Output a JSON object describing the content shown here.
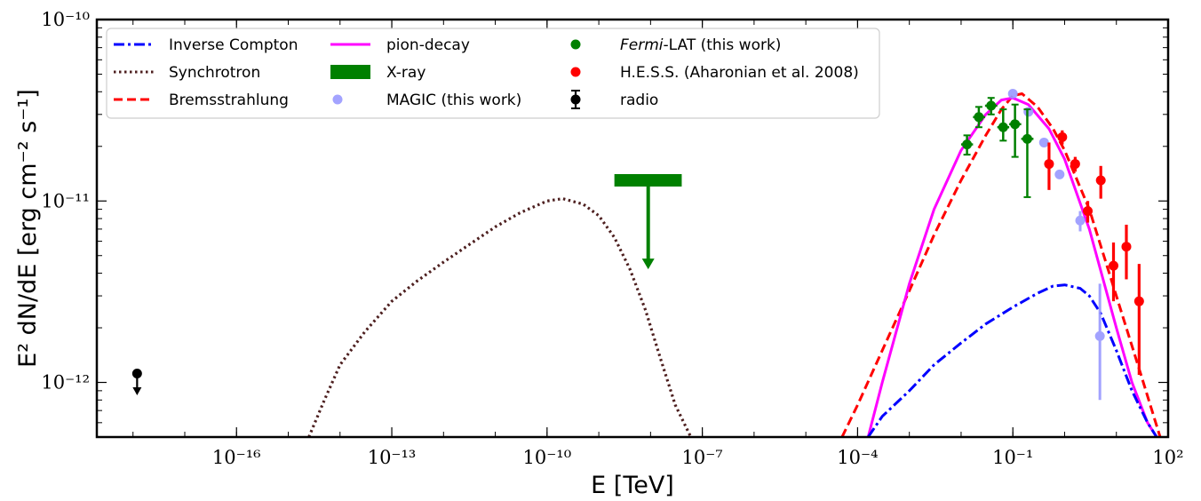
{
  "chart_data": {
    "type": "scatter",
    "xlabel": "E [TeV]",
    "ylabel": "E² dN/dE [erg cm⁻² s⁻¹]",
    "x_scale": "log",
    "y_scale": "log",
    "xlim": [
      2e-19,
      100
    ],
    "ylim": [
      5e-13,
      1e-10
    ],
    "x_ticks": [
      1e-16,
      1e-13,
      1e-10,
      1e-07,
      0.0001,
      0.1,
      100
    ],
    "x_tick_labels": [
      "10⁻¹⁶",
      "10⁻¹³",
      "10⁻¹⁰",
      "10⁻⁷",
      "10⁻⁴",
      "10⁻¹",
      "10²"
    ],
    "y_ticks": [
      1e-12,
      1e-11,
      1e-10
    ],
    "y_tick_labels": [
      "10⁻¹²",
      "10⁻¹¹",
      "10⁻¹⁰"
    ],
    "grid": false,
    "legend_placement": "top-left",
    "colors": {
      "inverse_compton": "#0000ff",
      "synchrotron": "#4d1f1f",
      "bremsstrahlung": "#ff0000",
      "pion_decay": "#ff00ff",
      "xray": "#008000",
      "magic": "#9999ff",
      "fermi": "#008000",
      "hess": "#ff0000",
      "radio": "#000000"
    },
    "legend": [
      {
        "key": "inverse_compton",
        "label": "Inverse Compton",
        "style": "dashdot"
      },
      {
        "key": "synchrotron",
        "label": "Synchrotron",
        "style": "dotted"
      },
      {
        "key": "bremsstrahlung",
        "label": "Bremsstrahlung",
        "style": "dashed"
      },
      {
        "key": "pion_decay",
        "label": "pion-decay",
        "style": "solid"
      },
      {
        "key": "xray",
        "label": "X-ray",
        "style": "patch"
      },
      {
        "key": "magic",
        "label": "MAGIC (this work)",
        "style": "marker"
      },
      {
        "key": "fermi",
        "label_italic": "Fermi",
        "label": "-LAT (this work)",
        "style": "marker"
      },
      {
        "key": "hess",
        "label": "H.E.S.S. (Aharonian et al. 2008)",
        "style": "marker"
      },
      {
        "key": "radio",
        "label": "radio",
        "style": "errorbar"
      }
    ],
    "curves": {
      "synchrotron": {
        "x": [
          2.5e-15,
          5e-15,
          1e-14,
          3e-14,
          1e-13,
          3e-13,
          1e-12,
          3e-12,
          1e-11,
          3e-11,
          1e-10,
          2e-10,
          5e-10,
          1e-09,
          2e-09,
          4e-09,
          8e-09,
          1.5e-08,
          3e-08,
          6e-08
        ],
        "y": [
          5e-13,
          8e-13,
          1.25e-12,
          1.9e-12,
          2.8e-12,
          3.6e-12,
          4.6e-12,
          5.7e-12,
          7.2e-12,
          8.6e-12,
          1e-11,
          1.03e-11,
          9.6e-12,
          8.3e-12,
          6.3e-12,
          4.2e-12,
          2.5e-12,
          1.4e-12,
          7.5e-13,
          5e-13
        ]
      },
      "pion_decay": {
        "x": [
          0.00016,
          0.0003,
          0.001,
          0.003,
          0.01,
          0.03,
          0.06,
          0.1,
          0.2,
          0.5,
          1,
          3,
          10,
          20,
          40,
          60
        ],
        "y": [
          5e-13,
          1e-12,
          3.5e-12,
          9e-12,
          1.9e-11,
          3e-11,
          3.6e-11,
          3.7e-11,
          3.4e-11,
          2.5e-11,
          1.7e-11,
          7e-12,
          2e-12,
          1e-12,
          6e-13,
          5e-13
        ]
      },
      "bremsstrahlung": {
        "x": [
          5e-05,
          0.0001,
          0.0003,
          0.001,
          0.003,
          0.01,
          0.03,
          0.06,
          0.1,
          0.15,
          0.3,
          0.6,
          1,
          3,
          10,
          30,
          70
        ],
        "y": [
          5e-13,
          7.5e-13,
          1.5e-12,
          3.2e-12,
          6.5e-12,
          1.3e-11,
          2.3e-11,
          3.2e-11,
          3.8e-11,
          3.9e-11,
          3.3e-11,
          2.5e-11,
          1.9e-11,
          9e-12,
          3e-12,
          1.1e-12,
          5e-13
        ]
      },
      "inverse_compton": {
        "x": [
          0.00016,
          0.0003,
          0.001,
          0.003,
          0.01,
          0.03,
          0.1,
          0.3,
          0.6,
          1,
          2,
          3,
          5,
          10,
          20,
          40,
          60
        ],
        "y": [
          5e-13,
          6.5e-13,
          9e-13,
          1.25e-12,
          1.65e-12,
          2.1e-12,
          2.6e-12,
          3.1e-12,
          3.4e-12,
          3.45e-12,
          3.3e-12,
          3e-12,
          2.4e-12,
          1.5e-12,
          9e-13,
          6e-13,
          5e-13
        ]
      }
    },
    "xray_upper_limit": {
      "x_min": 2e-09,
      "x_max": 4e-08,
      "x_center": 9e-09,
      "y": 1.3e-11,
      "y_arrow_end": 4.3e-12
    },
    "radio_upper_limit": {
      "x": 1.2e-18,
      "y": 1.12e-12,
      "y_arrow_end": 9.3e-13
    },
    "fermi_points": [
      {
        "x": 0.013,
        "y": 2.05e-11,
        "x_low": 0.01,
        "x_high": 0.017,
        "y_low": 1.8e-11,
        "y_high": 2.3e-11
      },
      {
        "x": 0.022,
        "y": 2.9e-11,
        "x_low": 0.017,
        "x_high": 0.029,
        "y_low": 2.55e-11,
        "y_high": 3.3e-11
      },
      {
        "x": 0.038,
        "y": 3.35e-11,
        "x_low": 0.029,
        "x_high": 0.05,
        "y_low": 3e-11,
        "y_high": 3.7e-11
      },
      {
        "x": 0.065,
        "y": 2.55e-11,
        "x_low": 0.05,
        "x_high": 0.085,
        "y_low": 2.15e-11,
        "y_high": 3.2e-11
      },
      {
        "x": 0.11,
        "y": 2.65e-11,
        "x_low": 0.085,
        "x_high": 0.145,
        "y_low": 1.75e-11,
        "y_high": 3.4e-11
      },
      {
        "x": 0.19,
        "y": 2.2e-11,
        "x_low": 0.145,
        "x_high": 0.25,
        "y_low": 1.05e-11,
        "y_high": 3.2e-11
      }
    ],
    "magic_points": [
      {
        "x": 0.1,
        "y": 3.9e-11,
        "y_low": 3.75e-11,
        "y_high": 4.05e-11
      },
      {
        "x": 0.2,
        "y": 3.1e-11,
        "y_low": 2.95e-11,
        "y_high": 3.25e-11
      },
      {
        "x": 0.4,
        "y": 2.1e-11,
        "y_low": 2e-11,
        "y_high": 2.2e-11
      },
      {
        "x": 0.8,
        "y": 1.4e-11,
        "y_low": 1.33e-11,
        "y_high": 1.48e-11
      },
      {
        "x": 2.0,
        "y": 7.8e-12,
        "y_low": 6.8e-12,
        "y_high": 8.8e-12
      },
      {
        "x": 4.8,
        "y": 1.8e-12,
        "y_low": 8e-13,
        "y_high": 3.5e-12
      }
    ],
    "hess_points": [
      {
        "x": 0.5,
        "y": 1.6e-11,
        "y_low": 1.15e-11,
        "y_high": 2.1e-11
      },
      {
        "x": 0.9,
        "y": 2.25e-11,
        "y_low": 2.05e-11,
        "y_high": 2.45e-11
      },
      {
        "x": 1.6,
        "y": 1.6e-11,
        "y_low": 1.45e-11,
        "y_high": 1.75e-11
      },
      {
        "x": 2.8,
        "y": 8.8e-12,
        "y_low": 7.6e-12,
        "y_high": 1e-11
      },
      {
        "x": 5.0,
        "y": 1.3e-11,
        "y_low": 1.03e-11,
        "y_high": 1.56e-11
      },
      {
        "x": 8.8,
        "y": 4.4e-12,
        "y_low": 2.8e-12,
        "y_high": 5.9e-12
      },
      {
        "x": 15.6,
        "y": 5.6e-12,
        "y_low": 3.7e-12,
        "y_high": 7.4e-12
      },
      {
        "x": 27.5,
        "y": 2.8e-12,
        "y_low": 1.1e-12,
        "y_high": 4.5e-12
      }
    ]
  }
}
